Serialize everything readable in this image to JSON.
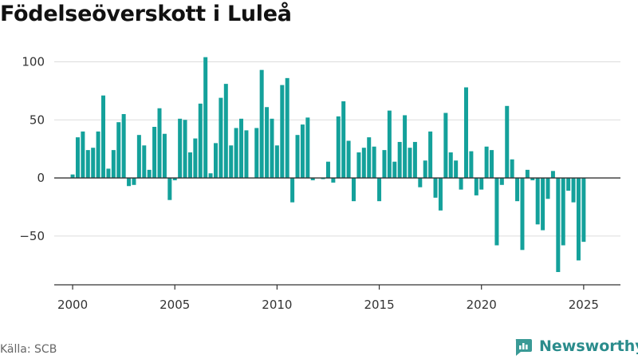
{
  "chart_data": {
    "type": "bar",
    "title": "Födelseöverskott i Luleå",
    "xlabel": "",
    "ylabel": "",
    "xlim": [
      1999.1,
      2026.8
    ],
    "ylim": [
      -92,
      112
    ],
    "x_ticks": [
      2000,
      2005,
      2010,
      2015,
      2020,
      2025
    ],
    "y_ticks": [
      -50,
      0,
      50,
      100
    ],
    "y_tick_labels": [
      "−50",
      "0",
      "50",
      "100"
    ],
    "grid": "horizontal",
    "bar_color": "#14a19b",
    "x_start": 2000.0,
    "x_step": 0.25,
    "values": [
      3,
      35,
      40,
      24,
      26,
      40,
      71,
      8,
      24,
      48,
      55,
      -7,
      -6,
      37,
      28,
      7,
      44,
      60,
      38,
      -19,
      -2,
      51,
      50,
      22,
      34,
      64,
      104,
      4,
      30,
      69,
      81,
      28,
      43,
      51,
      41,
      0,
      43,
      93,
      61,
      51,
      28,
      80,
      86,
      -21,
      37,
      46,
      52,
      -2,
      0,
      -1,
      14,
      -4,
      53,
      66,
      32,
      -20,
      22,
      26,
      35,
      27,
      -20,
      24,
      58,
      14,
      31,
      54,
      26,
      31,
      -8,
      15,
      40,
      -17,
      -28,
      56,
      22,
      15,
      -10,
      78,
      23,
      -15,
      -10,
      27,
      24,
      -58,
      -6,
      62,
      16,
      -20,
      -62,
      7,
      -2,
      -40,
      -45,
      -18,
      6,
      -81,
      -58,
      -11,
      -21,
      -71,
      -55
    ]
  },
  "footer": {
    "source": "Källa: SCB",
    "brand": "Newsworthy"
  },
  "colors": {
    "bar": "#14a19b",
    "brand": "#2a8c8c"
  }
}
